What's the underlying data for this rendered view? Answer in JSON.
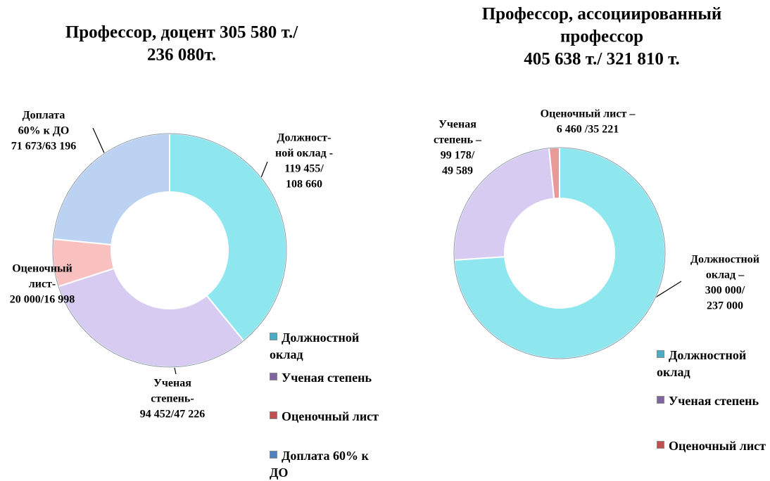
{
  "chart_data": [
    {
      "type": "donut",
      "title": [
        "Профессор, доцент 305 580 т./",
        "236 080т."
      ],
      "categories": [
        "Должностной оклад",
        "Ученая степень",
        "Оценочный лист",
        "Доплата 60% к ДО"
      ],
      "values": [
        119455,
        94452,
        20000,
        71673
      ],
      "value_labels": [
        [
          "Должност-",
          "ной оклад -",
          "119 455/",
          "108 660"
        ],
        [
          "Ученая",
          "степень-",
          "94 452/47 226"
        ],
        [
          "Оценочный",
          "лист-",
          "20 000/16  998"
        ],
        [
          "Доплата",
          "60% к ДО",
          "71 673/63 196"
        ]
      ],
      "colors": [
        "#8ee6ee",
        "#d8cbf2",
        "#f9c0c0",
        "#bcd2f3"
      ],
      "legend_colors": [
        "#4bacc6",
        "#8064a2",
        "#c0504d",
        "#4f81bd"
      ]
    },
    {
      "type": "donut",
      "title": [
        "Профессор, ассоциированный",
        "профессор",
        "405 638 т./ 321 810 т."
      ],
      "categories": [
        "Должностной оклад",
        "Ученая степень",
        "Оценочный лист"
      ],
      "values": [
        300000,
        99178,
        6460
      ],
      "value_labels": [
        [
          "Должностной",
          "оклад –",
          "300 000/",
          "237 000"
        ],
        [
          "Ученая",
          "степень –",
          "99 178/",
          "49 589"
        ],
        [
          "Оценочный лист –",
          "6 460 /35 221"
        ]
      ],
      "colors": [
        "#8ee6ee",
        "#d8cbf2",
        "#e79a98"
      ],
      "legend_colors": [
        "#4bacc6",
        "#8064a2",
        "#c0504d"
      ]
    }
  ]
}
